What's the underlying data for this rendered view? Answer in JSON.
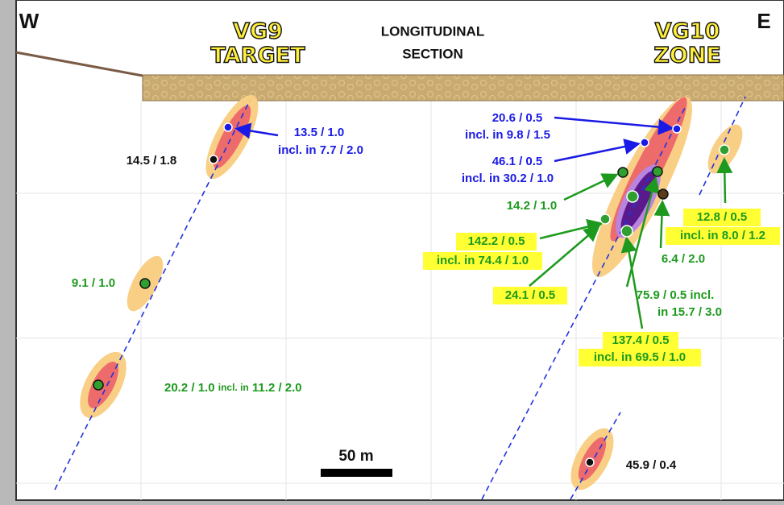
{
  "header": {
    "west": "W",
    "east": "E",
    "vg9": [
      "VG9",
      "TARGET"
    ],
    "section": [
      "LONGITUDINAL",
      "SECTION"
    ],
    "vg10": [
      "VG10",
      "ZONE"
    ],
    "scale": "50 m"
  },
  "intercepts": {
    "a": [
      "20.6 / 0.5",
      "incl. in 9.8 / 1.5"
    ],
    "b": [
      "46.1 / 0.5",
      "incl. in 30.2 / 1.0"
    ],
    "c": [
      "14.2 / 1.0"
    ],
    "d": [
      "142.2 / 0.5",
      "incl. in 74.4 / 1.0"
    ],
    "e": [
      "24.1 / 0.5"
    ],
    "f": [
      "75.9 / 0.5 incl.",
      "in 15.7 / 3.0"
    ],
    "g": [
      "137.4 / 0.5",
      "incl. in 69.5 / 1.0"
    ],
    "h": [
      "6.4 / 2.0"
    ],
    "i": [
      "12.8 / 0.5",
      "incl. in 8.0 / 1.2"
    ],
    "j": [
      "13.5 / 1.0",
      "incl. in 7.7 / 2.0"
    ],
    "k": [
      "14.5 / 1.8"
    ],
    "l": [
      "9.1 / 1.0"
    ],
    "m": [
      "20.2 / 1.0",
      "incl. in",
      "11.2 / 2.0"
    ],
    "n": [
      "45.9 / 0.4"
    ]
  }
}
